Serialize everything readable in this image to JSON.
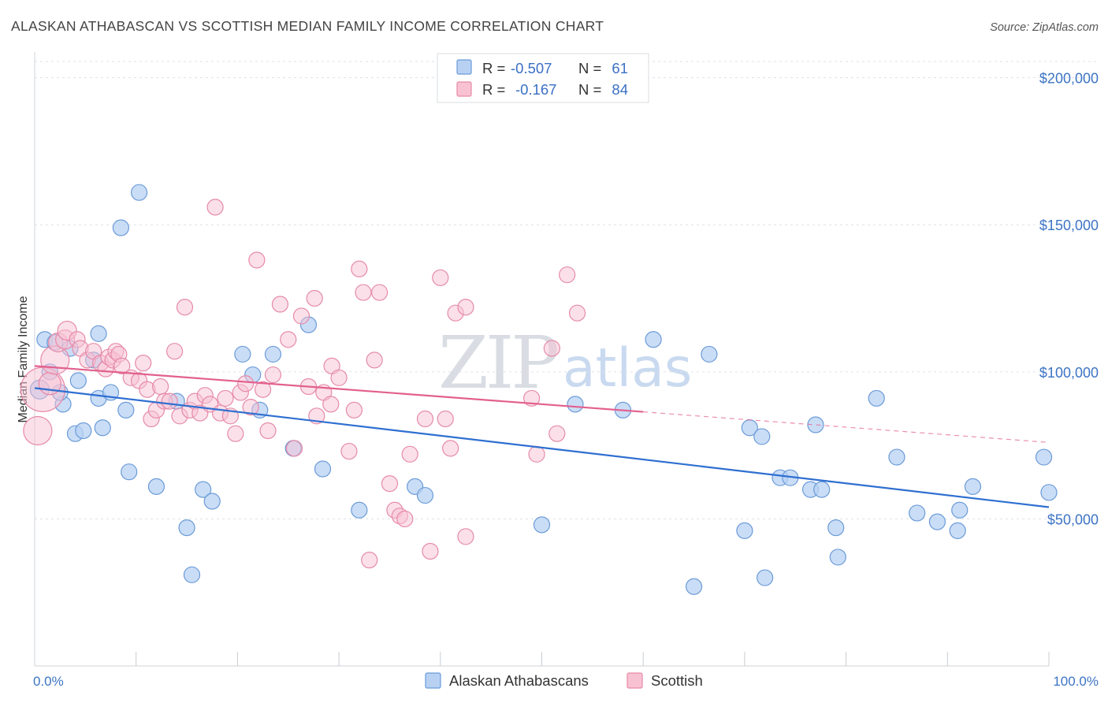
{
  "chart_data": {
    "type": "scatter",
    "title": "ALASKAN ATHABASCAN VS SCOTTISH MEDIAN FAMILY INCOME CORRELATION CHART",
    "source": "Source: ZipAtlas.com",
    "xlabel": "",
    "ylabel": "Median Family Income",
    "x_tick_labels": [
      "0.0%",
      "100.0%"
    ],
    "y_tick_labels": [
      "$50,000",
      "$100,000",
      "$150,000",
      "$200,000"
    ],
    "y_tick_values": [
      50000,
      100000,
      150000,
      200000
    ],
    "xlim": [
      0,
      100
    ],
    "ylim": [
      0,
      205000
    ],
    "grid": true,
    "watermark": [
      "ZIP",
      "atlas"
    ],
    "legend": {
      "position": "top-center",
      "rows": [
        {
          "series": "Alaskan Athabascans",
          "r_label": "R =",
          "r_value": "-0.507",
          "n_label": "N =",
          "n_value": "61"
        },
        {
          "series": "Scottish",
          "r_label": "R =",
          "r_value": "-0.167",
          "n_label": "N =",
          "n_value": "84"
        }
      ]
    },
    "colors": {
      "blue_fill": "#b8d1f3",
      "blue_stroke": "#6a9bd8",
      "blue_line": "#2f6fd1",
      "pink_fill": "#f8c2d3",
      "pink_stroke": "#e68aa8",
      "pink_line": "#e2608e",
      "grid": "#dde1e6",
      "axis_text": "#3d74c5"
    },
    "series": [
      {
        "name": "Alaskan Athabascans",
        "color": "#b8d1f3",
        "trend": {
          "x0": 0,
          "y0": 94500,
          "x1": 100,
          "y1": 54000,
          "dashed_from": null
        },
        "points": [
          [
            0.5,
            94000,
            12
          ],
          [
            1,
            111000,
            10
          ],
          [
            1.5,
            100000,
            10
          ],
          [
            2,
            110000,
            10
          ],
          [
            2.8,
            89000,
            10
          ],
          [
            2.5,
            93000,
            10
          ],
          [
            3.5,
            108000,
            10
          ],
          [
            4,
            79000,
            10
          ],
          [
            4.3,
            97000,
            10
          ],
          [
            4.8,
            80000,
            10
          ],
          [
            5.8,
            104000,
            10
          ],
          [
            6.3,
            113000,
            10
          ],
          [
            6.3,
            91000,
            10
          ],
          [
            6.7,
            81000,
            10
          ],
          [
            7.5,
            93000,
            10
          ],
          [
            8.5,
            149000,
            10
          ],
          [
            9,
            87000,
            10
          ],
          [
            9.3,
            66000,
            10
          ],
          [
            10.3,
            161000,
            10
          ],
          [
            12,
            61000,
            10
          ],
          [
            14,
            90000,
            10
          ],
          [
            15,
            47000,
            10
          ],
          [
            15.5,
            31000,
            10
          ],
          [
            16.6,
            60000,
            10
          ],
          [
            17.5,
            56000,
            10
          ],
          [
            20.5,
            106000,
            10
          ],
          [
            21.5,
            99000,
            10
          ],
          [
            22.2,
            87000,
            10
          ],
          [
            23.5,
            106000,
            10
          ],
          [
            25.5,
            74000,
            10
          ],
          [
            27,
            116000,
            10
          ],
          [
            28.4,
            67000,
            10
          ],
          [
            32,
            53000,
            10
          ],
          [
            37.5,
            61000,
            10
          ],
          [
            38.5,
            58000,
            10
          ],
          [
            50,
            48000,
            10
          ],
          [
            53.3,
            89000,
            10
          ],
          [
            58,
            87000,
            10
          ],
          [
            61,
            111000,
            10
          ],
          [
            65,
            27000,
            10
          ],
          [
            66.5,
            106000,
            10
          ],
          [
            70,
            46000,
            10
          ],
          [
            70.5,
            81000,
            10
          ],
          [
            71.7,
            78000,
            10
          ],
          [
            72,
            30000,
            10
          ],
          [
            73.5,
            64000,
            10
          ],
          [
            74.5,
            64000,
            10
          ],
          [
            76.5,
            60000,
            10
          ],
          [
            77,
            82000,
            10
          ],
          [
            77.6,
            60000,
            10
          ],
          [
            79,
            47000,
            10
          ],
          [
            79.2,
            37000,
            10
          ],
          [
            83,
            91000,
            10
          ],
          [
            85,
            71000,
            10
          ],
          [
            87,
            52000,
            10
          ],
          [
            89,
            49000,
            10
          ],
          [
            91,
            46000,
            10
          ],
          [
            91.2,
            53000,
            10
          ],
          [
            92.5,
            61000,
            10
          ],
          [
            99.5,
            71000,
            10
          ],
          [
            100,
            59000,
            10
          ]
        ]
      },
      {
        "name": "Scottish",
        "color": "#f8c2d3",
        "trend": {
          "x0": 0,
          "y0": 102000,
          "x1": 100,
          "y1": 76000,
          "dashed_from": 60
        },
        "points": [
          [
            0.3,
            80000,
            18
          ],
          [
            0.8,
            94000,
            28
          ],
          [
            1.5,
            96000,
            14
          ],
          [
            2,
            104000,
            18
          ],
          [
            2.3,
            110000,
            12
          ],
          [
            3,
            111000,
            12
          ],
          [
            3.2,
            114000,
            12
          ],
          [
            4.2,
            111000,
            10
          ],
          [
            4.5,
            108000,
            10
          ],
          [
            5.2,
            104000,
            10
          ],
          [
            5.8,
            107000,
            10
          ],
          [
            6.5,
            103000,
            10
          ],
          [
            7,
            101000,
            10
          ],
          [
            7.3,
            105000,
            10
          ],
          [
            7.7,
            104000,
            10
          ],
          [
            8,
            107000,
            10
          ],
          [
            8.3,
            106000,
            10
          ],
          [
            8.6,
            102000,
            10
          ],
          [
            9.5,
            98000,
            10
          ],
          [
            10.3,
            97000,
            10
          ],
          [
            10.7,
            103000,
            10
          ],
          [
            11.1,
            94000,
            10
          ],
          [
            11.5,
            84000,
            10
          ],
          [
            12,
            87000,
            10
          ],
          [
            12.4,
            95000,
            10
          ],
          [
            12.8,
            90000,
            10
          ],
          [
            13.3,
            90000,
            10
          ],
          [
            13.8,
            107000,
            10
          ],
          [
            14.3,
            85000,
            10
          ],
          [
            14.8,
            122000,
            10
          ],
          [
            15.3,
            87000,
            10
          ],
          [
            15.8,
            90000,
            10
          ],
          [
            16.3,
            86000,
            10
          ],
          [
            16.8,
            92000,
            10
          ],
          [
            17.3,
            89000,
            10
          ],
          [
            17.8,
            156000,
            10
          ],
          [
            18.3,
            86000,
            10
          ],
          [
            18.8,
            91000,
            10
          ],
          [
            19.3,
            85000,
            10
          ],
          [
            19.8,
            79000,
            10
          ],
          [
            20.3,
            93000,
            10
          ],
          [
            20.8,
            96000,
            10
          ],
          [
            21.3,
            88000,
            10
          ],
          [
            21.9,
            138000,
            10
          ],
          [
            22.5,
            94000,
            10
          ],
          [
            23,
            80000,
            10
          ],
          [
            23.5,
            99000,
            10
          ],
          [
            24.2,
            123000,
            10
          ],
          [
            25,
            111000,
            10
          ],
          [
            25.6,
            74000,
            10
          ],
          [
            26.3,
            119000,
            10
          ],
          [
            27,
            95000,
            10
          ],
          [
            27.6,
            125000,
            10
          ],
          [
            27.8,
            85000,
            10
          ],
          [
            28.5,
            93000,
            10
          ],
          [
            29.2,
            89000,
            10
          ],
          [
            29.3,
            102000,
            10
          ],
          [
            30,
            98000,
            10
          ],
          [
            31,
            73000,
            10
          ],
          [
            31.5,
            87000,
            10
          ],
          [
            32,
            135000,
            10
          ],
          [
            32.4,
            127000,
            10
          ],
          [
            33,
            36000,
            10
          ],
          [
            33.5,
            104000,
            10
          ],
          [
            34,
            127000,
            10
          ],
          [
            35,
            62000,
            10
          ],
          [
            35.5,
            53000,
            10
          ],
          [
            36,
            51000,
            10
          ],
          [
            36.5,
            50000,
            10
          ],
          [
            37,
            72000,
            10
          ],
          [
            38.5,
            84000,
            10
          ],
          [
            39,
            39000,
            10
          ],
          [
            40,
            132000,
            10
          ],
          [
            40.5,
            84000,
            10
          ],
          [
            41,
            74000,
            10
          ],
          [
            41.5,
            120000,
            10
          ],
          [
            42.5,
            122000,
            10
          ],
          [
            42.5,
            44000,
            10
          ],
          [
            49,
            91000,
            10
          ],
          [
            49.5,
            72000,
            10
          ],
          [
            51,
            108000,
            10
          ],
          [
            51.5,
            79000,
            10
          ],
          [
            52.5,
            133000,
            10
          ],
          [
            53.5,
            120000,
            10
          ]
        ]
      }
    ]
  }
}
